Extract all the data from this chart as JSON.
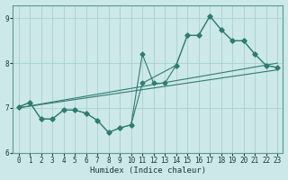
{
  "xlabel": "Humidex (Indice chaleur)",
  "bg_color": "#cce8e8",
  "grid_color": "#aacfcf",
  "line_color": "#2e7d72",
  "xlim": [
    -0.5,
    23.5
  ],
  "ylim": [
    6.0,
    9.3
  ],
  "yticks": [
    6,
    7,
    8,
    9
  ],
  "xticks": [
    0,
    1,
    2,
    3,
    4,
    5,
    6,
    7,
    8,
    9,
    10,
    11,
    12,
    13,
    14,
    15,
    16,
    17,
    18,
    19,
    20,
    21,
    22,
    23
  ],
  "series1_x": [
    0,
    1,
    2,
    3,
    4,
    5,
    6,
    7,
    8,
    9,
    10,
    11,
    12,
    13,
    14,
    15,
    16,
    17,
    18,
    19,
    20,
    21,
    22,
    23
  ],
  "series1_y": [
    7.02,
    7.12,
    6.75,
    6.75,
    6.95,
    6.95,
    6.88,
    6.72,
    6.45,
    6.55,
    6.62,
    8.2,
    7.55,
    7.55,
    7.95,
    8.62,
    8.62,
    9.05,
    8.75,
    8.5,
    8.5,
    8.2,
    7.95,
    7.9
  ],
  "series2_x": [
    0,
    1,
    2,
    3,
    4,
    5,
    6,
    7,
    8,
    9,
    10,
    11,
    14,
    15,
    16,
    17,
    18,
    19,
    20,
    21,
    22,
    23
  ],
  "series2_y": [
    7.02,
    7.12,
    6.75,
    6.75,
    6.95,
    6.95,
    6.88,
    6.72,
    6.45,
    6.55,
    6.62,
    7.55,
    7.95,
    8.62,
    8.62,
    9.05,
    8.75,
    8.5,
    8.5,
    8.2,
    7.95,
    7.9
  ],
  "trendline1_x": [
    0,
    23
  ],
  "trendline1_y": [
    7.0,
    8.0
  ],
  "trendline2_x": [
    0,
    23
  ],
  "trendline2_y": [
    7.0,
    7.85
  ],
  "marker_size": 2.5,
  "line_width": 0.8,
  "tick_fontsize": 5.5,
  "xlabel_fontsize": 6.5
}
